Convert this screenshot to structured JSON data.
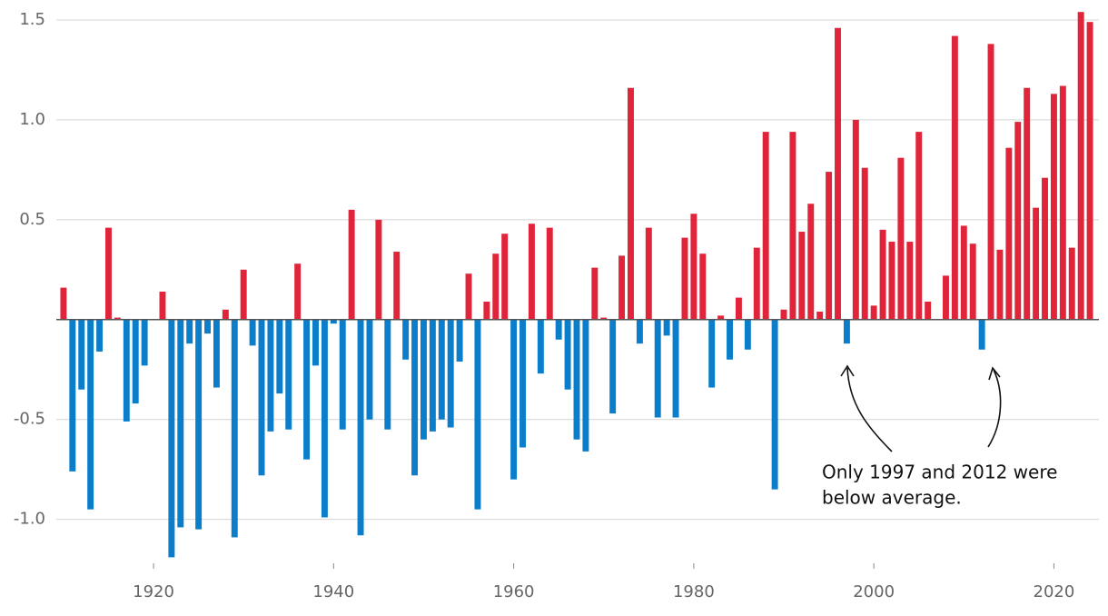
{
  "chart_data": {
    "type": "bar",
    "x": [
      1910,
      1911,
      1912,
      1913,
      1914,
      1915,
      1916,
      1917,
      1918,
      1919,
      1920,
      1921,
      1922,
      1923,
      1924,
      1925,
      1926,
      1927,
      1928,
      1929,
      1930,
      1931,
      1932,
      1933,
      1934,
      1935,
      1936,
      1937,
      1938,
      1939,
      1940,
      1941,
      1942,
      1943,
      1944,
      1945,
      1946,
      1947,
      1948,
      1949,
      1950,
      1951,
      1952,
      1953,
      1954,
      1955,
      1956,
      1957,
      1958,
      1959,
      1960,
      1961,
      1962,
      1963,
      1964,
      1965,
      1966,
      1967,
      1968,
      1969,
      1970,
      1971,
      1972,
      1973,
      1974,
      1975,
      1976,
      1977,
      1978,
      1979,
      1980,
      1981,
      1982,
      1983,
      1984,
      1985,
      1986,
      1987,
      1988,
      1989,
      1990,
      1991,
      1992,
      1993,
      1994,
      1995,
      1996,
      1997,
      1998,
      1999,
      2000,
      2001,
      2002,
      2003,
      2004,
      2005,
      2006,
      2007,
      2008,
      2009,
      2010,
      2011,
      2012,
      2013,
      2014,
      2015,
      2016,
      2017,
      2018,
      2019,
      2020,
      2021,
      2022,
      2023,
      2024
    ],
    "values": [
      0.16,
      -0.76,
      -0.35,
      -0.95,
      -0.16,
      0.46,
      0.01,
      -0.51,
      -0.42,
      -0.23,
      0,
      0.14,
      -1.19,
      -1.04,
      -0.12,
      -1.05,
      -0.07,
      -0.34,
      0.05,
      -1.09,
      0.25,
      -0.13,
      -0.78,
      -0.56,
      -0.37,
      -0.55,
      0.28,
      -0.7,
      -0.23,
      -0.99,
      -0.02,
      -0.55,
      0.55,
      -1.08,
      -0.5,
      0.5,
      -0.55,
      0.34,
      -0.2,
      -0.78,
      -0.6,
      -0.56,
      -0.5,
      -0.54,
      -0.21,
      0.23,
      -0.95,
      0.09,
      0.33,
      0.43,
      -0.8,
      -0.64,
      0.48,
      -0.27,
      0.46,
      -0.1,
      -0.35,
      -0.6,
      -0.66,
      0.26,
      0.01,
      -0.47,
      0.32,
      1.16,
      -0.12,
      0.46,
      -0.49,
      -0.08,
      -0.49,
      0.41,
      0.53,
      0.33,
      -0.34,
      0.02,
      -0.2,
      0.11,
      -0.15,
      0.36,
      0.94,
      -0.85,
      0.05,
      0.94,
      0.44,
      0.58,
      0.04,
      0.74,
      1.46,
      -0.12,
      1.0,
      0.76,
      0.07,
      0.45,
      0.39,
      0.81,
      0.39,
      0.94,
      0.09,
      0,
      0.22,
      1.42,
      0.47,
      0.38,
      -0.15,
      1.38,
      0.35,
      0.86,
      0.99,
      1.16,
      0.56,
      0.71,
      1.13,
      1.17,
      0.36,
      1.54,
      1.49
    ],
    "positive_color": "#e0253a",
    "negative_color": "#0a7ecb",
    "xlim": [
      1909,
      2025
    ],
    "xticks": [
      1920,
      1940,
      1960,
      1980,
      2000,
      2020
    ],
    "ylim": [
      -1.22,
      1.6
    ],
    "yticks": [
      1.5,
      {
        "value": 1,
        "label": "1.0"
      },
      0.5,
      -0.5,
      {
        "value": -1,
        "label": "-1.0"
      }
    ],
    "grid": true,
    "annotation": [
      "Only 1997 and 2012 were",
      "below average."
    ]
  }
}
